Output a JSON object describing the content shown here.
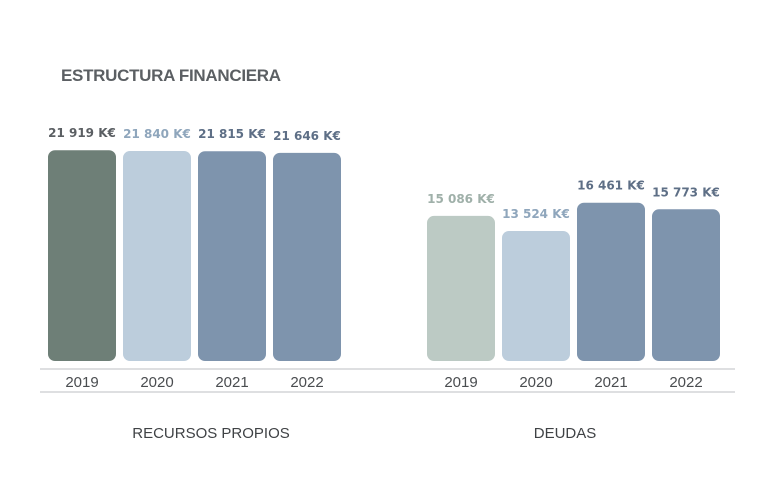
{
  "chart_data": {
    "type": "bar",
    "title": "ESTRUCTURA FINANCIERA",
    "unit": "K€",
    "ylim": [
      0,
      23500
    ],
    "grid": false,
    "groups": [
      {
        "name": "RECURSOS PROPIOS",
        "categories": [
          "2019",
          "2020",
          "2021",
          "2022"
        ],
        "values": [
          21919,
          21840,
          21815,
          21646
        ],
        "labels": [
          "21 919 K€",
          "21 840 K€",
          "21 815 K€",
          "21 646 K€"
        ],
        "colors": [
          "#6e7f77",
          "#bccddc",
          "#7e94ad",
          "#7e94ad"
        ],
        "label_colors": [
          "#5b5f63",
          "#8fa6bc",
          "#5e6f86",
          "#5e6f86"
        ]
      },
      {
        "name": "DEUDAS",
        "categories": [
          "2019",
          "2020",
          "2021",
          "2022"
        ],
        "values": [
          15086,
          13524,
          16461,
          15773
        ],
        "labels": [
          "15 086 K€",
          "13 524 K€",
          "16 461 K€",
          "15 773 K€"
        ],
        "colors": [
          "#bccac4",
          "#bccddc",
          "#7e94ad",
          "#7e94ad"
        ],
        "label_colors": [
          "#9fb0a9",
          "#8fa6bc",
          "#5e6f86",
          "#5e6f86"
        ]
      }
    ]
  }
}
